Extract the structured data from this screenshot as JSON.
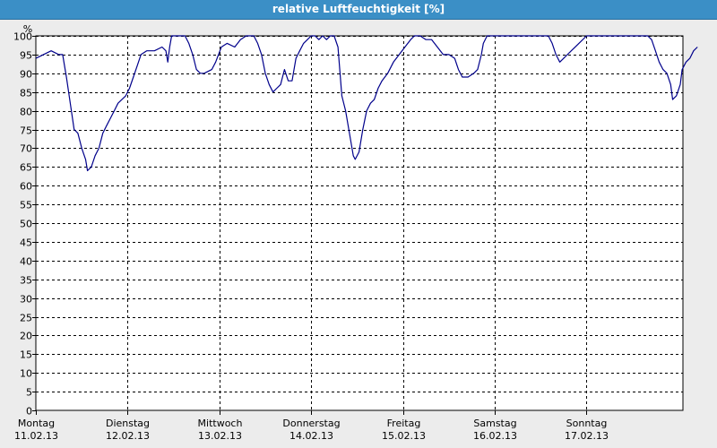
{
  "window": {
    "title": "relative Luftfeuchtigkeit [%]"
  },
  "colors": {
    "line": "#00008b",
    "titlebar": "#3b8fc6",
    "plot_bg": "#ffffff",
    "grid": "#000000"
  },
  "chart_data": {
    "type": "line",
    "title": "relative Luftfeuchtigkeit [%]",
    "ylabel": "%",
    "ylim": [
      0,
      100
    ],
    "ytick_step": 5,
    "grid": true,
    "day_labels": [
      {
        "day": "Montag",
        "date": "11.02.13"
      },
      {
        "day": "Dienstag",
        "date": "12.02.13"
      },
      {
        "day": "Mittwoch",
        "date": "13.02.13"
      },
      {
        "day": "Donnerstag",
        "date": "14.02.13"
      },
      {
        "day": "Freitag",
        "date": "15.02.13"
      },
      {
        "day": "Samstag",
        "date": "16.02.13"
      },
      {
        "day": "Sonntag",
        "date": "17.02.13"
      }
    ],
    "x_unit": "hours since Montag 11.02.13 00:00",
    "series": [
      {
        "values": [
          [
            0,
            94
          ],
          [
            2,
            95
          ],
          [
            4,
            96
          ],
          [
            6,
            95
          ],
          [
            7,
            95
          ],
          [
            8,
            89
          ],
          [
            9,
            82
          ],
          [
            10,
            75
          ],
          [
            11,
            74
          ],
          [
            12,
            70
          ],
          [
            13,
            67
          ],
          [
            13.5,
            64
          ],
          [
            14.5,
            65
          ],
          [
            15.5,
            68
          ],
          [
            16.5,
            70
          ],
          [
            17.5,
            74
          ],
          [
            18.5,
            76
          ],
          [
            19.5,
            78
          ],
          [
            20.5,
            80
          ],
          [
            21.5,
            82
          ],
          [
            22.5,
            83
          ],
          [
            23.5,
            84
          ],
          [
            24.5,
            86
          ],
          [
            25.5,
            89
          ],
          [
            26.5,
            92
          ],
          [
            27.5,
            95
          ],
          [
            29,
            96
          ],
          [
            31,
            96
          ],
          [
            33,
            97
          ],
          [
            34,
            96
          ],
          [
            34.5,
            93
          ],
          [
            35,
            97
          ],
          [
            35.5,
            100
          ],
          [
            37,
            100
          ],
          [
            39,
            100
          ],
          [
            40,
            98
          ],
          [
            41,
            95
          ],
          [
            42,
            91
          ],
          [
            43,
            90
          ],
          [
            44,
            90
          ],
          [
            46,
            91
          ],
          [
            47,
            93
          ],
          [
            48.5,
            97
          ],
          [
            50,
            98
          ],
          [
            52,
            97
          ],
          [
            53.5,
            99
          ],
          [
            55,
            100
          ],
          [
            57,
            100
          ],
          [
            58,
            98
          ],
          [
            59,
            95
          ],
          [
            60,
            90
          ],
          [
            61,
            87
          ],
          [
            62,
            85
          ],
          [
            63,
            86
          ],
          [
            64,
            87
          ],
          [
            65,
            91
          ],
          [
            66,
            88
          ],
          [
            67,
            88
          ],
          [
            68,
            94
          ],
          [
            69,
            96
          ],
          [
            70,
            98
          ],
          [
            71,
            99
          ],
          [
            72,
            100
          ],
          [
            73,
            100
          ],
          [
            74,
            99
          ],
          [
            75,
            100
          ],
          [
            76,
            99
          ],
          [
            77,
            100
          ],
          [
            78,
            100
          ],
          [
            79,
            97
          ],
          [
            80,
            84
          ],
          [
            81,
            80
          ],
          [
            82,
            74
          ],
          [
            83,
            68
          ],
          [
            83.5,
            67
          ],
          [
            84.5,
            69
          ],
          [
            85.5,
            75
          ],
          [
            86.5,
            80
          ],
          [
            87.5,
            82
          ],
          [
            88.5,
            83
          ],
          [
            89.5,
            86
          ],
          [
            90.5,
            88
          ],
          [
            92,
            90
          ],
          [
            93.5,
            93
          ],
          [
            95,
            95
          ],
          [
            96.5,
            97
          ],
          [
            98,
            99
          ],
          [
            99,
            100
          ],
          [
            100.5,
            100
          ],
          [
            102,
            99
          ],
          [
            103.5,
            99
          ],
          [
            105,
            97
          ],
          [
            106.5,
            95
          ],
          [
            108,
            95
          ],
          [
            109.5,
            94
          ],
          [
            110.5,
            91
          ],
          [
            111.5,
            89
          ],
          [
            113,
            89
          ],
          [
            114.5,
            90
          ],
          [
            115.5,
            91
          ],
          [
            116.5,
            95
          ],
          [
            117,
            98
          ],
          [
            118,
            100
          ],
          [
            120,
            100
          ],
          [
            122,
            100
          ],
          [
            126,
            100
          ],
          [
            130,
            100
          ],
          [
            134,
            100
          ],
          [
            135,
            98
          ],
          [
            136,
            95
          ],
          [
            137,
            93
          ],
          [
            138,
            94
          ],
          [
            140,
            96
          ],
          [
            142,
            98
          ],
          [
            144,
            100
          ],
          [
            148,
            100
          ],
          [
            152,
            100
          ],
          [
            156,
            100
          ],
          [
            160,
            100
          ],
          [
            161,
            99
          ],
          [
            162,
            96
          ],
          [
            163,
            93
          ],
          [
            164,
            91
          ],
          [
            165,
            90
          ],
          [
            166,
            87
          ],
          [
            166.5,
            83
          ],
          [
            167.5,
            84
          ],
          [
            168.5,
            87
          ],
          [
            169,
            91
          ],
          [
            170,
            93
          ],
          [
            171,
            94
          ],
          [
            172,
            96
          ],
          [
            173,
            97
          ]
        ]
      }
    ],
    "x_range_hours": [
      0,
      175
    ]
  }
}
